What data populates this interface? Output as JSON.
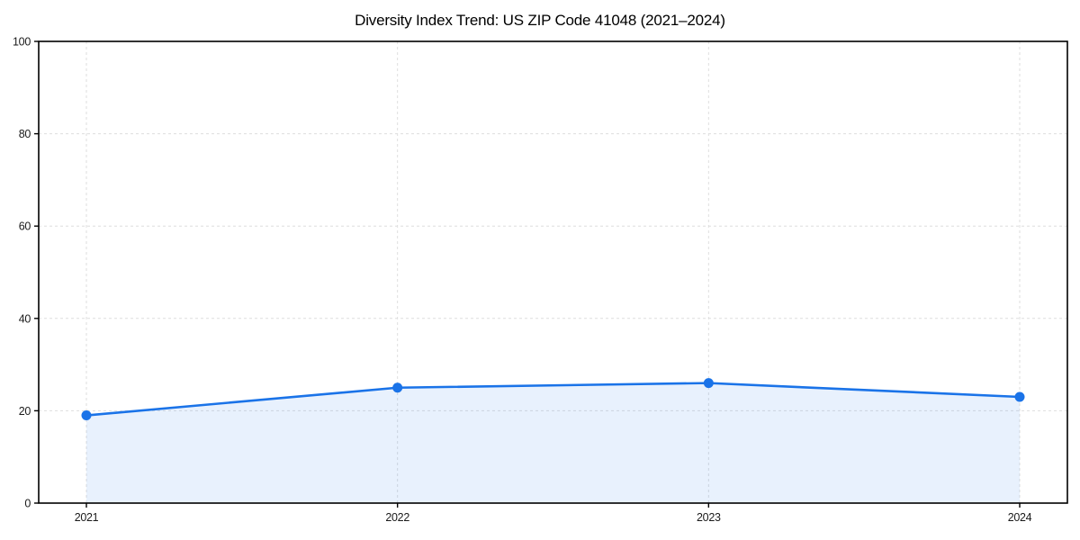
{
  "chart_data": {
    "type": "area",
    "title": "Diversity Index Trend: US ZIP Code 41048 (2021–2024)",
    "categories": [
      "2021",
      "2022",
      "2023",
      "2024"
    ],
    "series": [
      {
        "name": "Diversity Index",
        "values": [
          19,
          25,
          26,
          23
        ]
      }
    ],
    "xlabel": "",
    "ylabel": "",
    "ylim": [
      0,
      100
    ],
    "yticks": [
      0,
      20,
      40,
      60,
      80,
      100
    ],
    "grid": "dashed, horizontal and vertical",
    "legend_position": "none",
    "colors": {
      "line": "#1a73e8",
      "marker": "#1a73e8",
      "area_fill": "rgba(26, 115, 232, 0.10)",
      "gridline": "#dedede",
      "frame": "#000000",
      "tick_text": "#1a1a1a",
      "background": "#ffffff"
    }
  }
}
